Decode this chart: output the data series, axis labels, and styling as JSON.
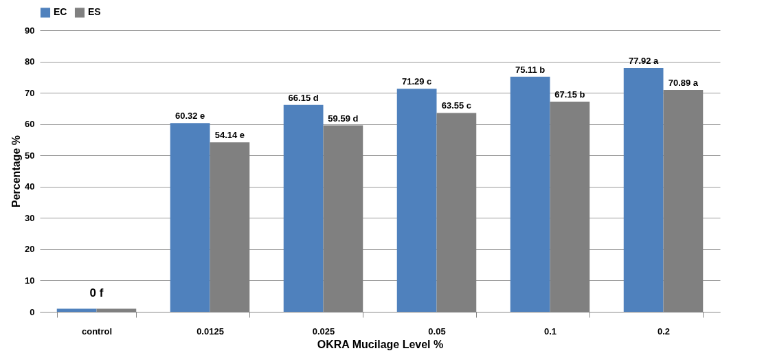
{
  "chart_data": {
    "type": "bar",
    "xlabel": "OKRA Mucilage Level %",
    "ylabel": "Percentage %",
    "categories": [
      "control",
      "0.0125",
      "0.025",
      "0.05",
      "0.1",
      "0.2"
    ],
    "series": [
      {
        "name": "EC",
        "color": "#4f81bd",
        "values": [
          1,
          60.32,
          66.15,
          71.29,
          75.11,
          77.92
        ],
        "value_labels": [
          null,
          "60.32 e",
          "66.15 d",
          "71.29 c",
          "75.11 b",
          "77.92 a"
        ]
      },
      {
        "name": "ES",
        "color": "#808080",
        "values": [
          1,
          54.14,
          59.59,
          63.55,
          67.15,
          70.89
        ],
        "value_labels": [
          null,
          "54.14 e",
          "59.59 d",
          "63.55 c",
          "67.15 b",
          "70.89 a"
        ]
      }
    ],
    "annotations": [
      {
        "text": "0 f",
        "x": "control",
        "y": 1
      }
    ],
    "ylim": [
      0,
      90
    ],
    "yticks": [
      0,
      10,
      20,
      30,
      40,
      50,
      60,
      70,
      80,
      90
    ],
    "grid": "y",
    "legend": "top"
  }
}
